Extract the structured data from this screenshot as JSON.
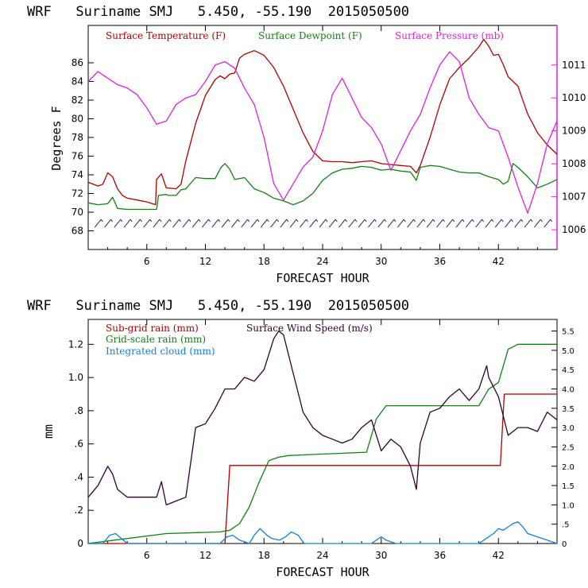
{
  "colors": {
    "temperature": "#b00000",
    "dewpoint": "#108010",
    "pressure": "#e020e0",
    "subgrid_rain": "#b00000",
    "grid_rain": "#108010",
    "cloud": "#1080e0",
    "wind": "#300030",
    "axis": "#000000"
  },
  "chart_data": [
    {
      "type": "line",
      "title": "WRF   Suriname SMJ   5.450, -55.190  2015050500",
      "xlabel": "FORECAST HOUR",
      "ylabel": "Degrees F",
      "xlim": [
        0,
        48
      ],
      "ylim": [
        66,
        90
      ],
      "y2lim": [
        1005.4,
        1012.2
      ],
      "xticks": [
        6,
        12,
        18,
        24,
        30,
        36,
        42
      ],
      "xtick_labels": [
        "6",
        "12",
        "18",
        "24",
        "30",
        "36",
        "42"
      ],
      "yticks": [
        68,
        70,
        72,
        74,
        76,
        78,
        80,
        82,
        84,
        86
      ],
      "ytick_labels": [
        "68",
        "70",
        "72",
        "74",
        "76",
        "78",
        "80",
        "82",
        "84",
        "86"
      ],
      "y2ticks": [
        1006,
        1007,
        1008,
        1009,
        1010,
        1011
      ],
      "y2tick_labels": [
        "1006",
        "1007",
        "1008",
        "1009",
        "1010",
        "1011"
      ],
      "legend": [
        "Surface Temperature (F)",
        "Surface Dewpoint (F)",
        "Surface Pressure (mb)"
      ],
      "series": [
        {
          "name": "Surface Temperature (F)",
          "axis": "left",
          "colorKey": "temperature",
          "x": [
            0,
            1,
            1.5,
            2,
            2.5,
            3,
            3.5,
            4,
            5,
            6,
            6.9,
            7,
            7.5,
            8,
            8.1,
            9,
            9.5,
            10,
            11,
            12,
            13,
            13.5,
            14,
            14.5,
            15,
            15.5,
            16,
            17,
            18,
            19,
            20,
            21,
            22,
            23,
            24,
            25,
            26,
            27,
            28,
            29,
            30,
            31,
            32,
            33,
            33.6,
            34,
            35,
            36,
            37,
            38,
            39,
            40,
            40.5,
            41,
            41.5,
            42,
            42.5,
            43,
            44,
            45,
            46,
            47,
            48
          ],
          "y": [
            73.2,
            72.8,
            73,
            74.2,
            73.8,
            72.5,
            71.8,
            71.5,
            71.3,
            71.1,
            70.8,
            73.5,
            74.1,
            72.6,
            72.6,
            72.5,
            73,
            75.5,
            79.5,
            82.5,
            84.2,
            84.6,
            84.3,
            84.8,
            84.9,
            86.5,
            86.9,
            87.3,
            86.8,
            85.5,
            83.5,
            81,
            78.5,
            76.5,
            75.5,
            75.4,
            75.4,
            75.3,
            75.4,
            75.5,
            75.2,
            75.1,
            75,
            74.9,
            74.2,
            75,
            78,
            81.5,
            84.3,
            85.5,
            86.5,
            87.7,
            88.5,
            87.8,
            86.8,
            86.9,
            85.8,
            84.5,
            83.5,
            80.5,
            78.5,
            77.2,
            76.2
          ]
        },
        {
          "name": "Surface Dewpoint (F)",
          "axis": "left",
          "colorKey": "dewpoint",
          "x": [
            0,
            1,
            2,
            2.5,
            3,
            4,
            5,
            6,
            7,
            7.2,
            8,
            8.2,
            9,
            9.5,
            10,
            11,
            12,
            13,
            13.6,
            14,
            14.5,
            15,
            16,
            17,
            18,
            19,
            20,
            21,
            22,
            23,
            24,
            25,
            26,
            27,
            28,
            29,
            30,
            31,
            32,
            33,
            33.6,
            34,
            35,
            36,
            37,
            38,
            39,
            40,
            41,
            42,
            42.5,
            43,
            43.5,
            44,
            45,
            46,
            47,
            48
          ],
          "y": [
            71,
            70.8,
            70.9,
            71.6,
            70.4,
            70.3,
            70.3,
            70.3,
            70.3,
            71.8,
            71.9,
            71.8,
            71.8,
            72.4,
            72.5,
            73.7,
            73.6,
            73.6,
            74.8,
            75.2,
            74.6,
            73.5,
            73.7,
            72.5,
            72.1,
            71.5,
            71.2,
            70.8,
            71.2,
            72,
            73.4,
            74.2,
            74.6,
            74.7,
            74.9,
            74.8,
            74.5,
            74.6,
            74.4,
            74.3,
            73.4,
            74.8,
            75,
            74.9,
            74.6,
            74.3,
            74.2,
            74.2,
            73.8,
            73.5,
            73,
            73.3,
            75.2,
            74.8,
            73.8,
            72.6,
            73,
            73.5
          ]
        },
        {
          "name": "Surface Pressure (mb)",
          "axis": "right",
          "colorKey": "pressure",
          "x": [
            0,
            1,
            2,
            3,
            4,
            5,
            6,
            7,
            8,
            9,
            10,
            11,
            12,
            13,
            14,
            15,
            16,
            17,
            18,
            19,
            20,
            21,
            22,
            23,
            24,
            25,
            26,
            27,
            28,
            29,
            30,
            31,
            32,
            33,
            34,
            35,
            36,
            37,
            38,
            39,
            40,
            41,
            42,
            43,
            44,
            45,
            46,
            47,
            48
          ],
          "y": [
            1010.5,
            1010.8,
            1010.6,
            1010.4,
            1010.3,
            1010.1,
            1009.7,
            1009.2,
            1009.3,
            1009.8,
            1010.0,
            1010.1,
            1010.5,
            1011.0,
            1011.1,
            1010.9,
            1010.3,
            1009.8,
            1008.8,
            1007.4,
            1006.9,
            1007.4,
            1007.9,
            1008.2,
            1009.0,
            1010.1,
            1010.6,
            1010.0,
            1009.4,
            1009.1,
            1008.6,
            1007.8,
            1008.4,
            1009.0,
            1009.5,
            1010.3,
            1011.0,
            1011.4,
            1011.1,
            1010.0,
            1009.5,
            1009.1,
            1009.0,
            1008.2,
            1007.3,
            1006.5,
            1007.4,
            1008.6,
            1009.3
          ]
        }
      ]
    },
    {
      "type": "line",
      "title": "WRF   Suriname SMJ   5.450, -55.190  2015050500",
      "xlabel": "FORECAST HOUR",
      "ylabel": "mm",
      "xlim": [
        0,
        48
      ],
      "ylim": [
        0,
        1.35
      ],
      "y2lim": [
        0,
        5.8
      ],
      "xticks": [
        6,
        12,
        18,
        24,
        30,
        36,
        42
      ],
      "xtick_labels": [
        "6",
        "12",
        "18",
        "24",
        "30",
        "36",
        "42"
      ],
      "yticks": [
        0,
        0.2,
        0.4,
        0.6,
        0.8,
        1.0,
        1.2
      ],
      "ytick_labels": [
        "0",
        ".2",
        ".4",
        ".6",
        ".8",
        "1.0",
        "1.2"
      ],
      "y2ticks": [
        0,
        0.5,
        1.0,
        1.5,
        2.0,
        2.5,
        3.0,
        3.5,
        4.0,
        4.5,
        5.0,
        5.5
      ],
      "y2tick_labels": [
        "0",
        ".5",
        "1.0",
        "1.5",
        "2.0",
        "2.5",
        "3.0",
        "3.5",
        "4.0",
        "4.5",
        "5.0",
        "5.5"
      ],
      "legend": [
        "Sub-grid rain (mm)",
        "Grid-scale rain (mm)",
        "Integrated cloud (mm)",
        "Surface Wind Speed (m/s)"
      ],
      "series": [
        {
          "name": "Sub-grid rain (mm)",
          "axis": "left",
          "colorKey": "subgrid_rain",
          "x": [
            0,
            14,
            14.5,
            42.2,
            42.6,
            48
          ],
          "y": [
            0,
            0,
            0.47,
            0.47,
            0.9,
            0.9
          ]
        },
        {
          "name": "Grid-scale rain (mm)",
          "axis": "left",
          "colorKey": "grid_rain",
          "x": [
            0,
            8,
            13.5,
            14.5,
            15.5,
            16.5,
            17.5,
            18.5,
            19.5,
            20.5,
            28.5,
            29.5,
            30.5,
            40,
            41,
            42,
            43,
            44,
            45,
            48
          ],
          "y": [
            0,
            0.06,
            0.07,
            0.08,
            0.12,
            0.22,
            0.37,
            0.5,
            0.52,
            0.53,
            0.55,
            0.75,
            0.83,
            0.83,
            0.93,
            0.97,
            1.17,
            1.2,
            1.2,
            1.2
          ]
        },
        {
          "name": "Integrated cloud (mm)",
          "axis": "left",
          "colorKey": "cloud",
          "x": [
            0,
            1.5,
            2.2,
            2.8,
            3.4,
            4,
            13.5,
            14.2,
            14.8,
            15.5,
            16.5,
            17,
            17.6,
            18.3,
            18.8,
            19.6,
            20.2,
            20.8,
            21.5,
            22.1,
            29,
            29.5,
            30,
            30.5,
            31,
            31.5,
            40,
            40.5,
            41.5,
            42,
            42.5,
            43,
            43.5,
            44,
            44.5,
            45,
            48
          ],
          "y": [
            0,
            0,
            0.05,
            0.06,
            0.03,
            0,
            0,
            0.04,
            0.05,
            0.02,
            0,
            0.05,
            0.09,
            0.05,
            0.03,
            0.02,
            0.04,
            0.07,
            0.05,
            0,
            0,
            0.02,
            0.04,
            0.02,
            0.01,
            0,
            0,
            0.02,
            0.06,
            0.09,
            0.08,
            0.1,
            0.12,
            0.13,
            0.1,
            0.06,
            0
          ]
        },
        {
          "name": "Surface Wind Speed (m/s)",
          "axis": "right",
          "colorKey": "wind",
          "x": [
            0,
            1,
            2,
            2.5,
            3,
            4,
            5,
            6,
            7,
            7.5,
            8,
            9,
            10,
            11,
            12,
            13,
            14,
            15,
            16,
            17,
            18,
            19,
            19.5,
            20,
            21,
            22,
            23,
            24,
            25,
            26,
            27,
            28,
            29,
            30,
            31,
            32,
            33,
            33.6,
            34,
            35,
            36,
            37,
            38,
            39,
            40,
            40.8,
            41,
            42,
            43,
            44,
            45,
            46,
            47,
            48
          ],
          "y": [
            1.2,
            1.5,
            2.0,
            1.8,
            1.4,
            1.2,
            1.2,
            1.2,
            1.2,
            1.6,
            1.0,
            1.1,
            1.2,
            3.0,
            3.1,
            3.5,
            4.0,
            4.0,
            4.3,
            4.2,
            4.5,
            5.3,
            5.5,
            5.4,
            4.4,
            3.4,
            3.0,
            2.8,
            2.7,
            2.6,
            2.7,
            3.0,
            3.2,
            2.4,
            2.7,
            2.5,
            2.0,
            1.4,
            2.6,
            3.4,
            3.5,
            3.8,
            4.0,
            3.7,
            4.0,
            4.6,
            4.3,
            3.8,
            2.8,
            3.0,
            3.0,
            2.9,
            3.4,
            3.2
          ]
        }
      ]
    }
  ]
}
